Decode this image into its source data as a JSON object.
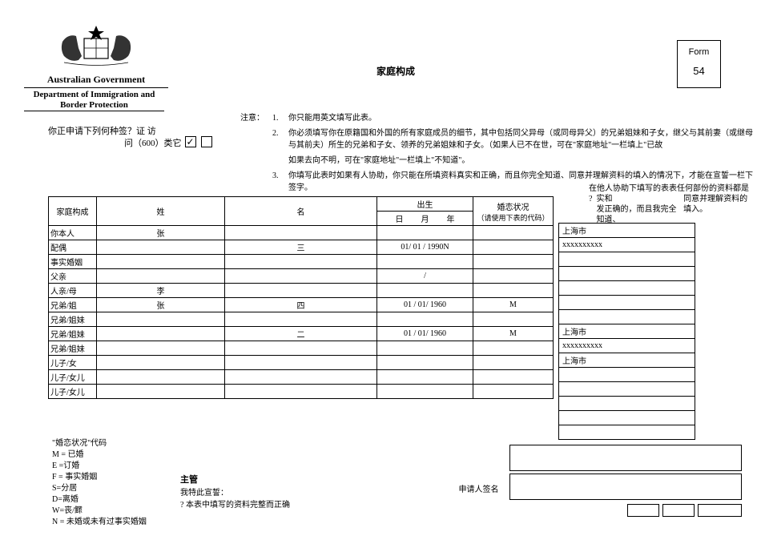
{
  "header": {
    "gov": "Australian Government",
    "dept": "Department of Immigration and Border Protection",
    "form_label": "Form",
    "form_num": "54",
    "title": "家庭构成"
  },
  "visa": {
    "question": "你正申请下列何种签？证     访",
    "opt": "问（600）类它",
    "tick": "✓"
  },
  "notes": {
    "label": "注意：",
    "n1": "你只能用英文填写此表。",
    "n2a": "你必须填写你在原籍国和外国的所有家庭成员的细节，其中包括同父异母（或同母异父）的兄弟姐妹和子女，继父与其前妻（或继母与其前夫）所生的兄弟和子女、领养的兄弟姐妹和子女。（如果人已不在世，可在\"家庭地址\"一栏填上\"已故",
    "n2b": "如果去向不明，可在\"家庭地址\"一栏填上\"不知道\"。",
    "n3": "你填写此表时如果有人协助，你只能在所填资料真实和正确，而且你完全知道、同意并理解资料的填入的情况下，才能在宣誓一栏下签字。"
  },
  "decl": {
    "line1": "在他人协助下填写的表表任何部份的资料都是",
    "line2": "实和",
    "line3": "发正确的，而且我完全知道、",
    "line4": "同意并理解资料的填入。"
  },
  "table": {
    "h_rel": "家庭构成",
    "h_sur": "姓",
    "h_giv": "名",
    "h_dob": "出生",
    "h_mar": "婚恋状况",
    "mar_hint": "（请使用下表的代码）",
    "dob_d": "日",
    "dob_m": "月",
    "dob_y": "年",
    "rows": [
      {
        "rel": "你本人",
        "sur": "张",
        "giv": "",
        "dob": "",
        "mar": ""
      },
      {
        "rel": "配偶",
        "sur": "",
        "giv": "三",
        "dob": "01/  01 / 1990N",
        "mar": ""
      },
      {
        "rel": "事实婚姻",
        "sur": "",
        "giv": "",
        "dob": "",
        "mar": ""
      },
      {
        "rel": "父亲",
        "sur": "",
        "giv": "",
        "dob": "/",
        "mar": ""
      },
      {
        "rel": "人亲/母",
        "sur": "李",
        "giv": "",
        "dob": "",
        "mar": ""
      },
      {
        "rel": "兄弟/姐",
        "sur": "张",
        "giv": "四",
        "dob": "01 /  01/  1960",
        "mar": "M"
      },
      {
        "rel": "兄弟/姐妹",
        "sur": "",
        "giv": "",
        "dob": "",
        "mar": ""
      },
      {
        "rel": "兄弟/姐妹",
        "sur": "",
        "giv": "二",
        "dob": "01 /  01/  1960",
        "mar": "M"
      },
      {
        "rel": "兄弟/姐妹",
        "sur": "",
        "giv": "",
        "dob": "",
        "mar": ""
      },
      {
        "rel": "儿子/女",
        "sur": "",
        "giv": "",
        "dob": "",
        "mar": ""
      },
      {
        "rel": "儿子/女儿",
        "sur": "",
        "giv": "",
        "dob": "",
        "mar": ""
      },
      {
        "rel": "儿子/女儿",
        "sur": "",
        "giv": "",
        "dob": "",
        "mar": ""
      }
    ],
    "side": [
      "上海市",
      "xxxxxxxxxx",
      "",
      "",
      "",
      "",
      "",
      "上海市",
      "xxxxxxxxxx",
      "上海市",
      "",
      "",
      "",
      "",
      ""
    ]
  },
  "codes": {
    "title": "\"婚恋状况\"代码",
    "M": "M = 已婚",
    "E": "E =订婚",
    "F": "F = 事实婚姻",
    "S": "S=分居",
    "D": "D=离婚",
    "W": "W=丧/鳏",
    "N": "N = 未婚或未有过事实婚姻"
  },
  "supervisor": {
    "label": "主管",
    "line1": "我特此宣誓：",
    "line2": "? 本表中填写的资料完整而正确"
  },
  "sig": {
    "applicant": "申请人签名"
  }
}
